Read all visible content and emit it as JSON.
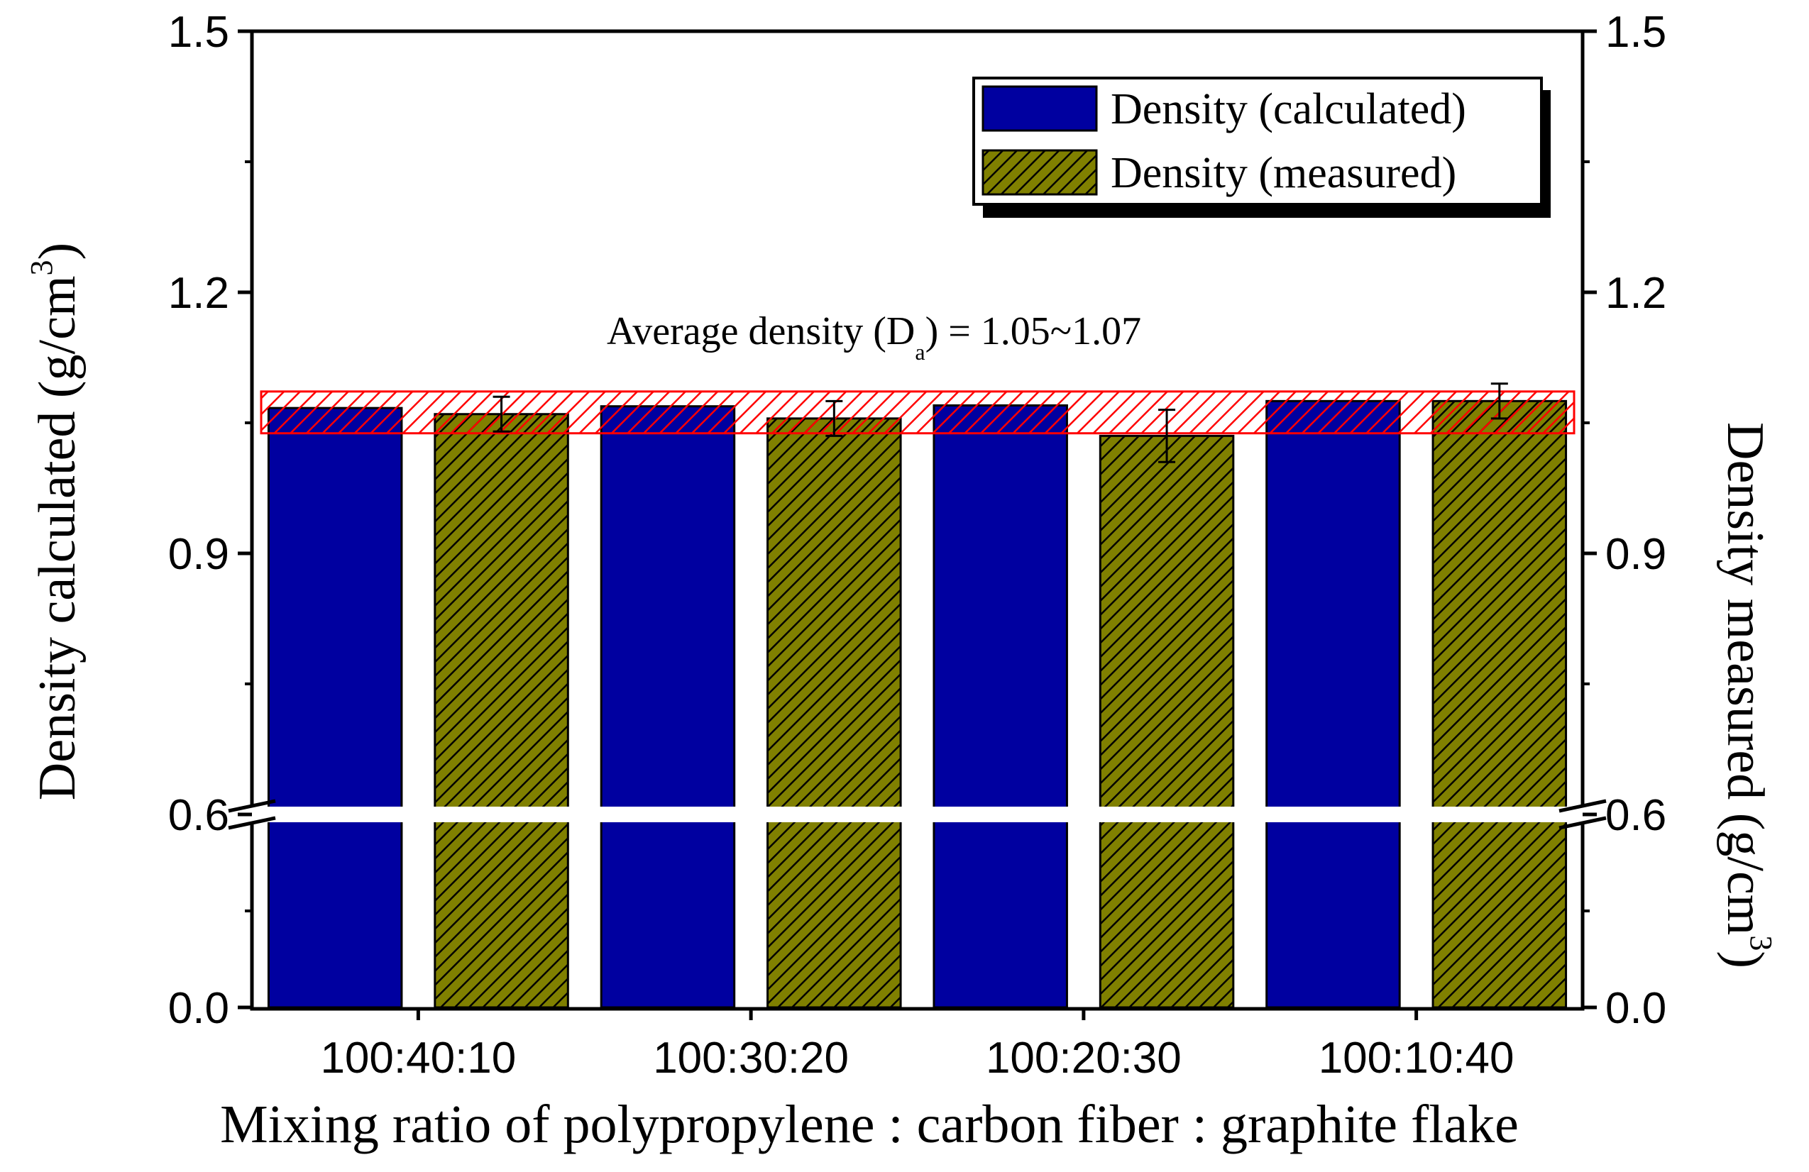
{
  "chart_data": {
    "type": "bar",
    "categories": [
      "100:40:10",
      "100:30:20",
      "100:20:30",
      "100:10:40"
    ],
    "series": [
      {
        "name": "Density (calculated)",
        "values": [
          1.067,
          1.069,
          1.07,
          1.075
        ],
        "color": "#0000A0",
        "pattern": "solid"
      },
      {
        "name": "Density (measured)",
        "values": [
          1.06,
          1.055,
          1.035,
          1.075
        ],
        "errors": [
          0.02,
          0.02,
          0.03,
          0.02
        ],
        "color": "#808000",
        "pattern": "hatched"
      }
    ],
    "xlabel": "Mixing ratio of polypropylene : carbon fiber : graphite flake",
    "ylabel_left": "Density calculated (g/cm",
    "ylabel_right": "Density measured (g/cm",
    "ylabel_superscript": "3",
    "ylabel_close": ")",
    "yticks": [
      "0.0",
      "0.6",
      "0.9",
      "1.2",
      "1.5"
    ],
    "ytick_values": [
      0.0,
      0.6,
      0.9,
      1.2,
      1.5
    ],
    "axis_break": [
      0.0,
      0.6
    ],
    "ylim": [
      0.0,
      1.5
    ],
    "annotation": {
      "prefix": "Average density (D",
      "subscript": "a",
      "suffix": ") = 1.05~1.07",
      "band": [
        1.05,
        1.07
      ],
      "band_color": "#FF0000"
    },
    "legend": {
      "position": "top-right"
    }
  }
}
